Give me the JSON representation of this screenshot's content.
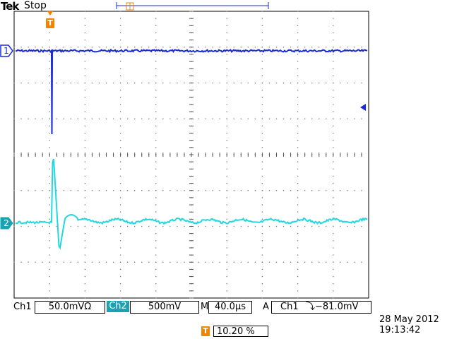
{
  "header": {
    "brand": "Tek",
    "run_state": "Stop"
  },
  "channels": {
    "ch1": {
      "label": "Ch1",
      "scale": "50.0mVΩ",
      "marker": "1",
      "color": "#1a2bd8"
    },
    "ch2": {
      "label": "Ch2",
      "scale": "500mV",
      "marker": "2",
      "color": "#22d8e0"
    }
  },
  "timebase": {
    "label": "M",
    "scale": "40.0µs"
  },
  "trigger": {
    "mode": "A",
    "source": "Ch1",
    "slope_level": "⤵−81.0mV",
    "marker": "T",
    "color": "#f28500"
  },
  "horizontal_position": {
    "marker": "T",
    "value": "10.20 %"
  },
  "timestamp": {
    "date": "28 May 2012",
    "time": "19:13:42"
  }
}
